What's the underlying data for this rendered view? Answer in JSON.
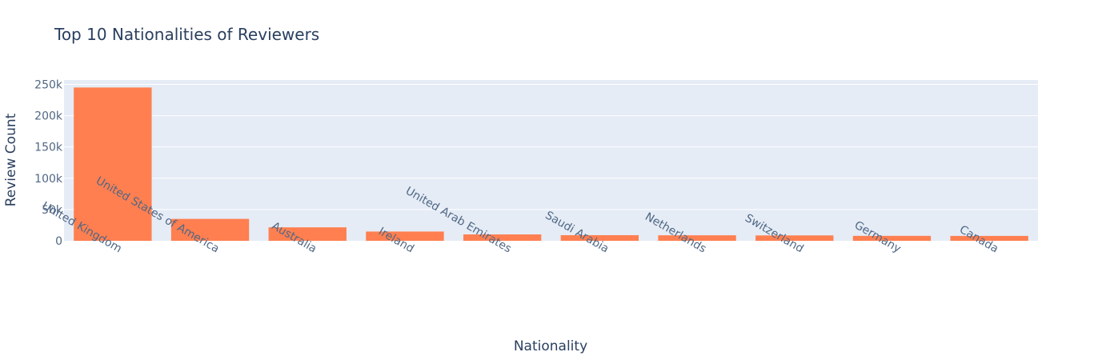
{
  "chart_data": {
    "type": "bar",
    "title": "Top 10 Nationalities of Reviewers",
    "xlabel": "Nationality",
    "ylabel": "Review Count",
    "categories": [
      "United Kingdom",
      "United States of America",
      "Australia",
      "Ireland",
      "United Arab Emirates",
      "Saudi Arabia",
      "Netherlands",
      "Switzerland",
      "Germany",
      "Canada"
    ],
    "values": [
      245000,
      35000,
      21500,
      14800,
      10200,
      9000,
      8800,
      8600,
      7900,
      7800
    ],
    "ylim": [
      0,
      257000
    ],
    "yticks": [
      0,
      50000,
      100000,
      150000,
      200000,
      250000
    ],
    "ytick_labels": [
      "0",
      "50k",
      "100k",
      "150k",
      "200k",
      "250k"
    ],
    "grid": true,
    "legend": false,
    "colors": {
      "bar": "#ff7f50",
      "plot_bg": "#e5ecf6",
      "grid": "#ffffff",
      "text": "#2a3f5f",
      "tick": "#506784"
    }
  }
}
